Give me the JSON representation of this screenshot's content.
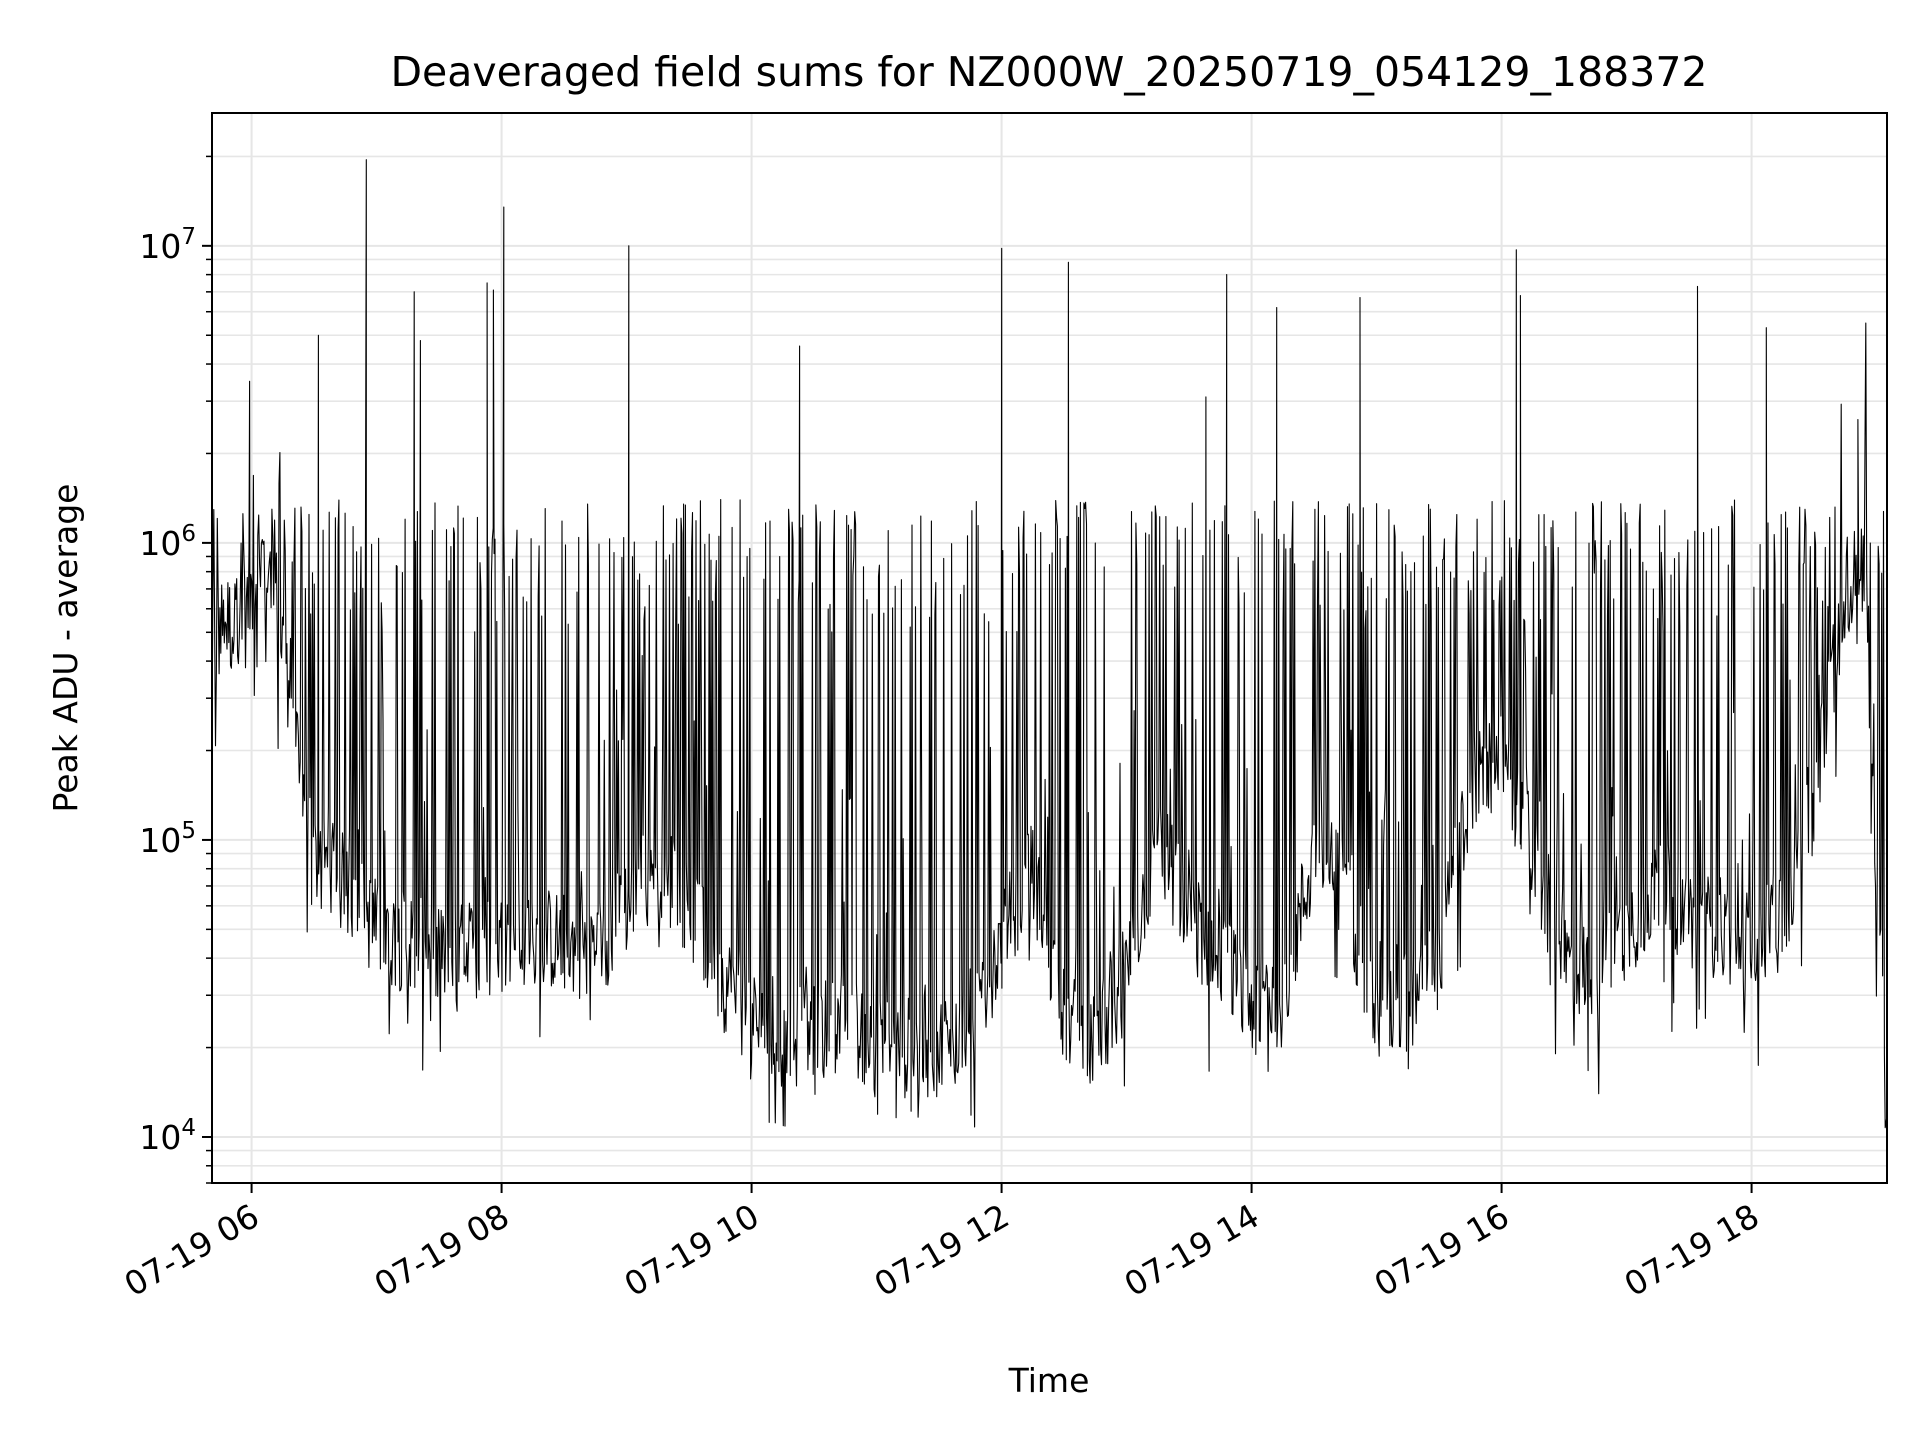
{
  "chart_data": {
    "type": "line",
    "title": "Deaveraged field sums for NZ000W_20250719_054129_188372",
    "xlabel": "Time",
    "ylabel": "Peak ADU - average",
    "yscale": "log",
    "ylim": [
      7000,
      28000000
    ],
    "xlim": [
      "07-19 05:41",
      "07-19 19:05"
    ],
    "grid": true,
    "x_ticks": [
      {
        "value": "07-19 06:00",
        "label": "07-19 06"
      },
      {
        "value": "07-19 08:00",
        "label": "07-19 08"
      },
      {
        "value": "07-19 10:00",
        "label": "07-19 10"
      },
      {
        "value": "07-19 12:00",
        "label": "07-19 12"
      },
      {
        "value": "07-19 14:00",
        "label": "07-19 14"
      },
      {
        "value": "07-19 16:00",
        "label": "07-19 16"
      },
      {
        "value": "07-19 18:00",
        "label": "07-19 18"
      }
    ],
    "y_ticks": [
      {
        "value": 10000,
        "base": "10",
        "exp": "4"
      },
      {
        "value": 100000,
        "base": "10",
        "exp": "5"
      },
      {
        "value": 1000000,
        "base": "10",
        "exp": "6"
      },
      {
        "value": 10000000,
        "base": "10",
        "exp": "7"
      }
    ],
    "line_color": "#000000",
    "series": [
      {
        "x": [
          "07-19 05:41",
          "07-19 05:48",
          "07-19 05:55",
          "07-19 06:00",
          "07-19 06:05",
          "07-19 06:12",
          "07-19 06:20",
          "07-19 06:24",
          "07-19 06:30",
          "07-19 06:45",
          "07-19 07:00",
          "07-19 07:15",
          "07-19 07:30",
          "07-19 07:45",
          "07-19 08:00",
          "07-19 08:15",
          "07-19 08:30",
          "07-19 08:45",
          "07-19 09:00",
          "07-19 09:15",
          "07-19 09:30",
          "07-19 09:45",
          "07-19 10:00",
          "07-19 10:15",
          "07-19 10:30",
          "07-19 10:45",
          "07-19 11:00",
          "07-19 11:15",
          "07-19 11:30",
          "07-19 11:45",
          "07-19 12:00",
          "07-19 12:15",
          "07-19 12:30",
          "07-19 12:45",
          "07-19 13:00",
          "07-19 13:15",
          "07-19 13:30",
          "07-19 13:45",
          "07-19 14:00",
          "07-19 14:15",
          "07-19 14:30",
          "07-19 14:45",
          "07-19 15:00",
          "07-19 15:15",
          "07-19 15:30",
          "07-19 15:45",
          "07-19 16:00",
          "07-19 16:15",
          "07-19 16:30",
          "07-19 16:45",
          "07-19 17:00",
          "07-19 17:15",
          "07-19 17:30",
          "07-19 17:45",
          "07-19 18:00",
          "07-19 18:15",
          "07-19 18:30",
          "07-19 18:45",
          "07-19 18:55",
          "07-19 19:00",
          "07-19 19:05"
        ],
        "y": [
          450000,
          550000,
          480000,
          700000,
          900000,
          600000,
          300000,
          150000,
          90000,
          70000,
          50000,
          45000,
          40000,
          42000,
          45000,
          48000,
          45000,
          42000,
          60000,
          85000,
          60000,
          35000,
          25000,
          22000,
          22000,
          25000,
          20000,
          20000,
          20000,
          25000,
          45000,
          80000,
          25000,
          20000,
          35000,
          100000,
          55000,
          40000,
          28000,
          30000,
          90000,
          70000,
          25000,
          28000,
          40000,
          150000,
          180000,
          90000,
          40000,
          35000,
          50000,
          70000,
          55000,
          50000,
          45000,
          55000,
          150000,
          700000,
          900000,
          70000,
          11000
        ]
      }
    ],
    "spikes": [
      {
        "x": "07-19 05:59",
        "y": 3500000
      },
      {
        "x": "07-19 06:32",
        "y": 5000000
      },
      {
        "x": "07-19 06:55",
        "y": 19500000
      },
      {
        "x": "07-19 07:18",
        "y": 7000000
      },
      {
        "x": "07-19 07:21",
        "y": 4800000
      },
      {
        "x": "07-19 07:53",
        "y": 7500000
      },
      {
        "x": "07-19 07:56",
        "y": 7100000
      },
      {
        "x": "07-19 08:01",
        "y": 13500000
      },
      {
        "x": "07-19 09:01",
        "y": 10000000
      },
      {
        "x": "07-19 10:23",
        "y": 4600000
      },
      {
        "x": "07-19 12:00",
        "y": 9800000
      },
      {
        "x": "07-19 12:32",
        "y": 8800000
      },
      {
        "x": "07-19 13:38",
        "y": 3100000
      },
      {
        "x": "07-19 13:48",
        "y": 8000000
      },
      {
        "x": "07-19 14:12",
        "y": 6200000
      },
      {
        "x": "07-19 14:52",
        "y": 6700000
      },
      {
        "x": "07-19 16:07",
        "y": 9700000
      },
      {
        "x": "07-19 16:09",
        "y": 6800000
      },
      {
        "x": "07-19 17:34",
        "y": 7300000
      },
      {
        "x": "07-19 18:07",
        "y": 5300000
      },
      {
        "x": "07-19 18:51",
        "y": 2600000
      }
    ]
  }
}
